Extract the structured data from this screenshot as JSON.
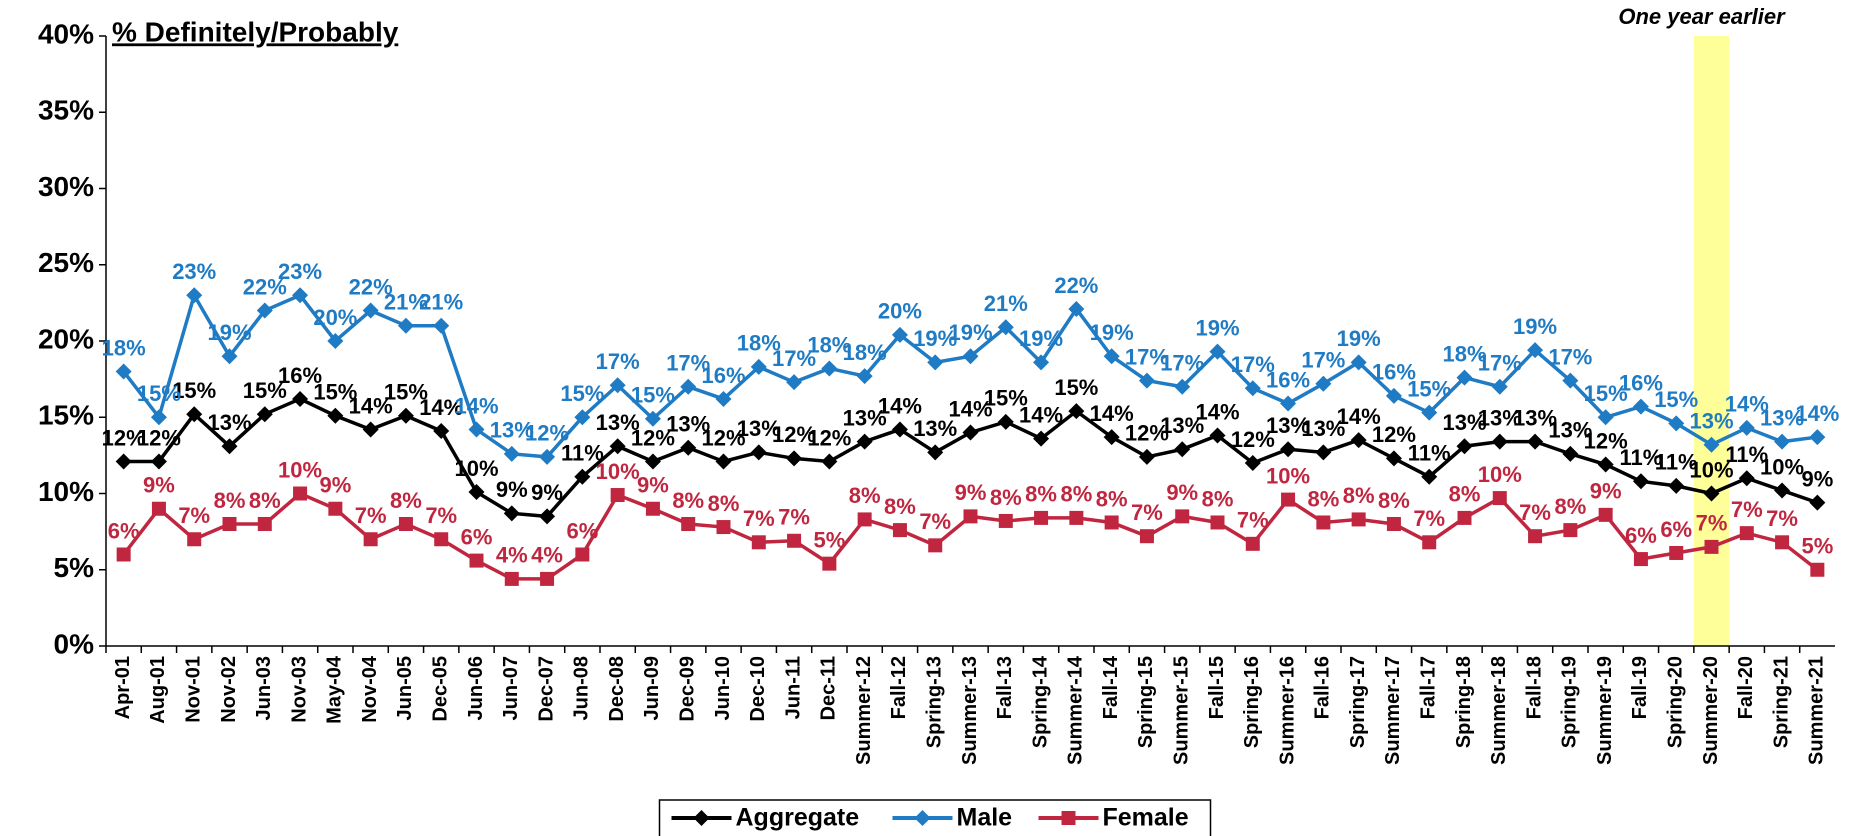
{
  "chart_data": {
    "type": "line",
    "title": "% Definitely/Probably",
    "annotation": {
      "text": "One year earlier",
      "at": 45,
      "color": "#ffff99"
    },
    "categories": [
      "Apr-01",
      "Aug-01",
      "Nov-01",
      "Nov-02",
      "Jun-03",
      "Nov-03",
      "May-04",
      "Nov-04",
      "Jun-05",
      "Dec-05",
      "Jun-06",
      "Jun-07",
      "Dec-07",
      "Jun-08",
      "Dec-08",
      "Jun-09",
      "Dec-09",
      "Jun-10",
      "Dec-10",
      "Jun-11",
      "Dec-11",
      "Summer-12",
      "Fall-12",
      "Spring-13",
      "Summer-13",
      "Fall-13",
      "Spring-14",
      "Summer-14",
      "Fall-14",
      "Spring-15",
      "Summer-15",
      "Fall-15",
      "Spring-16",
      "Summer-16",
      "Fall-16",
      "Spring-17",
      "Summer-17",
      "Fall-17",
      "Spring-18",
      "Summer-18",
      "Fall-18",
      "Spring-19",
      "Summer-19",
      "Fall-19",
      "Spring-20",
      "Summer-20",
      "Fall-20",
      "Spring-21",
      "Summer-21"
    ],
    "series": [
      {
        "name": "Aggregate",
        "color": "#000000",
        "marker": "diamond",
        "values": [
          12.1,
          12.1,
          15.2,
          13.1,
          15.2,
          16.2,
          15.1,
          14.2,
          15.1,
          14.1,
          10.1,
          8.7,
          8.5,
          11.1,
          13.1,
          12.1,
          13.0,
          12.1,
          12.7,
          12.3,
          12.1,
          13.4,
          14.2,
          12.7,
          14.0,
          14.7,
          13.6,
          15.4,
          13.7,
          12.4,
          12.9,
          13.8,
          12.0,
          12.9,
          12.7,
          13.5,
          12.3,
          11.1,
          13.1,
          13.4,
          13.4,
          12.6,
          11.9,
          10.8,
          10.5,
          10.0,
          11.0,
          10.2,
          9.4
        ],
        "value_labels": [
          "12%",
          "12%",
          "15%",
          "13%",
          "15%",
          "16%",
          "15%",
          "14%",
          "15%",
          "14%",
          "10%",
          "9%",
          "9%",
          "11%",
          "13%",
          "12%",
          "13%",
          "12%",
          "13%",
          "12%",
          "12%",
          "13%",
          "14%",
          "13%",
          "14%",
          "15%",
          "14%",
          "15%",
          "14%",
          "12%",
          "13%",
          "14%",
          "12%",
          "13%",
          "13%",
          "14%",
          "12%",
          "11%",
          "13%",
          "13%",
          "13%",
          "13%",
          "12%",
          "11%",
          "11%",
          "10%",
          "11%",
          "10%",
          "9%"
        ]
      },
      {
        "name": "Male",
        "color": "#1f7bc4",
        "marker": "diamond",
        "values": [
          18.0,
          15.0,
          23.0,
          19.0,
          22.0,
          23.0,
          20.0,
          22.0,
          21.0,
          21.0,
          14.2,
          12.6,
          12.4,
          15.0,
          17.1,
          14.9,
          17.0,
          16.2,
          18.3,
          17.3,
          18.2,
          17.7,
          20.4,
          18.6,
          19.0,
          20.9,
          18.6,
          22.1,
          19.0,
          17.4,
          17.0,
          19.3,
          16.9,
          15.9,
          17.2,
          18.6,
          16.4,
          15.3,
          17.6,
          17.0,
          19.4,
          17.4,
          15.0,
          15.7,
          14.6,
          13.2,
          14.3,
          13.4,
          13.7
        ],
        "value_labels": [
          "18%",
          "15%",
          "23%",
          "19%",
          "22%",
          "23%",
          "20%",
          "22%",
          "21%",
          "21%",
          "14%",
          "13%",
          "12%",
          "15%",
          "17%",
          "15%",
          "17%",
          "16%",
          "18%",
          "17%",
          "18%",
          "18%",
          "20%",
          "19%",
          "19%",
          "21%",
          "19%",
          "22%",
          "19%",
          "17%",
          "17%",
          "19%",
          "17%",
          "16%",
          "17%",
          "19%",
          "16%",
          "15%",
          "18%",
          "17%",
          "19%",
          "17%",
          "15%",
          "16%",
          "15%",
          "13%",
          "14%",
          "13%",
          "14%"
        ]
      },
      {
        "name": "Female",
        "color": "#c0263f",
        "marker": "square",
        "values": [
          6.0,
          9.0,
          7.0,
          8.0,
          8.0,
          10.0,
          9.0,
          7.0,
          8.0,
          7.0,
          5.6,
          4.4,
          4.4,
          6.0,
          9.9,
          9.0,
          8.0,
          7.8,
          6.8,
          6.9,
          5.4,
          8.3,
          7.6,
          6.6,
          8.5,
          8.2,
          8.4,
          8.4,
          8.1,
          7.2,
          8.5,
          8.1,
          6.7,
          9.6,
          8.1,
          8.3,
          8.0,
          6.8,
          8.4,
          9.7,
          7.2,
          7.6,
          8.6,
          5.7,
          6.1,
          6.5,
          7.4,
          6.8,
          5.0
        ],
        "value_labels": [
          "6%",
          "9%",
          "7%",
          "8%",
          "8%",
          "10%",
          "9%",
          "7%",
          "8%",
          "7%",
          "6%",
          "4%",
          "4%",
          "6%",
          "10%",
          "9%",
          "8%",
          "8%",
          "7%",
          "7%",
          "5%",
          "8%",
          "8%",
          "7%",
          "9%",
          "8%",
          "8%",
          "8%",
          "8%",
          "7%",
          "9%",
          "8%",
          "7%",
          "10%",
          "8%",
          "8%",
          "8%",
          "7%",
          "8%",
          "10%",
          "7%",
          "8%",
          "9%",
          "6%",
          "6%",
          "7%",
          "7%",
          "7%",
          "5%"
        ]
      }
    ],
    "ylim": [
      0,
      40
    ],
    "yticks": [
      {
        "value": 0,
        "label": "0%"
      },
      {
        "value": 5,
        "label": "5%"
      },
      {
        "value": 10,
        "label": "10%"
      },
      {
        "value": 15,
        "label": "15%"
      },
      {
        "value": 20,
        "label": "20%"
      },
      {
        "value": 25,
        "label": "25%"
      },
      {
        "value": 30,
        "label": "30%"
      },
      {
        "value": 35,
        "label": "35%"
      },
      {
        "value": 40,
        "label": "40%"
      }
    ],
    "grid": false,
    "legend": "bottom"
  }
}
